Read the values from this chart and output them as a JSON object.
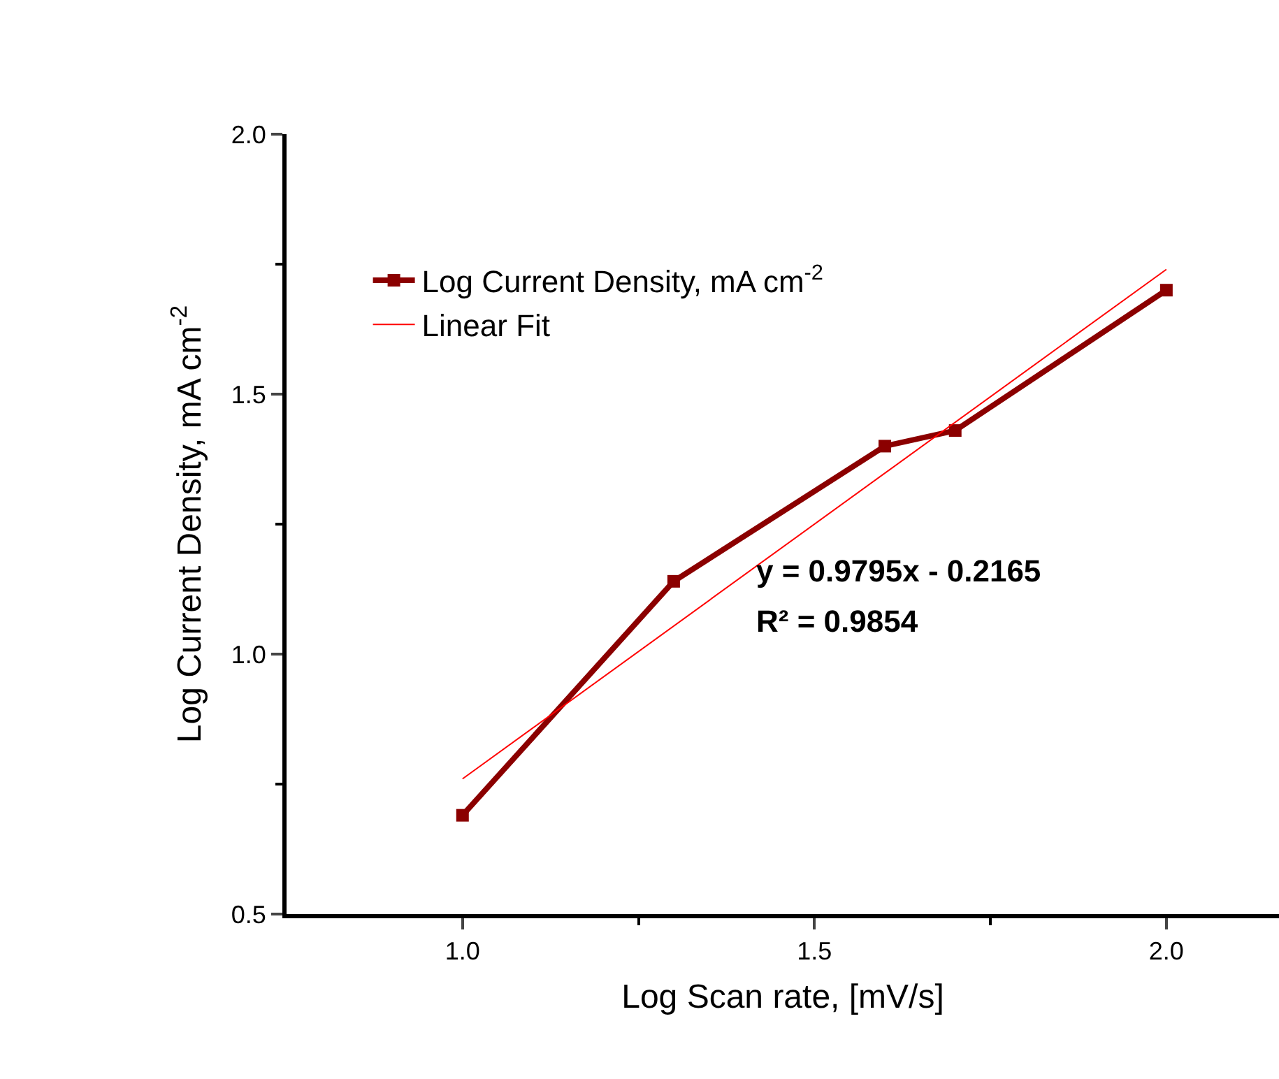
{
  "chart_data": {
    "type": "line",
    "xlabel": "Log Scan rate, [mV/s]",
    "ylabel": "Log Current Density, mA cm$^{-2}$",
    "series": [
      {
        "name": "Log Current Density, mA cm$^{-2}$",
        "color": "#8b0000",
        "x": [
          1.0,
          1.3,
          1.6,
          1.7,
          2.0
        ],
        "values": [
          0.69,
          1.14,
          1.4,
          1.43,
          1.7
        ],
        "marker": "square",
        "line_style": "solid"
      },
      {
        "name": "Linear Fit",
        "color": "#ff0000",
        "x": [
          1.0,
          2.0
        ],
        "values": [
          0.76,
          1.74
        ],
        "marker": "none",
        "line_style": "solid"
      }
    ],
    "xlim": [
      0.75,
      2.16
    ],
    "ylim": [
      0.5,
      2.0
    ],
    "xticks": [
      {
        "value": 1.0,
        "label": "1.0"
      },
      {
        "value": 1.25,
        "label": null
      },
      1.5,
      {
        "value": 1.75,
        "label": null
      },
      {
        "value": 2.0,
        "label": "2.0"
      }
    ],
    "yticks": [
      0.5,
      {
        "value": 0.75,
        "label": null
      },
      {
        "value": 1.0,
        "label": "1.0"
      },
      {
        "value": 1.25,
        "label": null
      },
      1.5,
      {
        "value": 1.75,
        "label": null
      },
      {
        "value": 2.0,
        "label": "2.0"
      }
    ],
    "annotations": [
      "y = 0.9795x - 0.2165",
      "R² = 0.9854"
    ],
    "legend": "top left"
  }
}
